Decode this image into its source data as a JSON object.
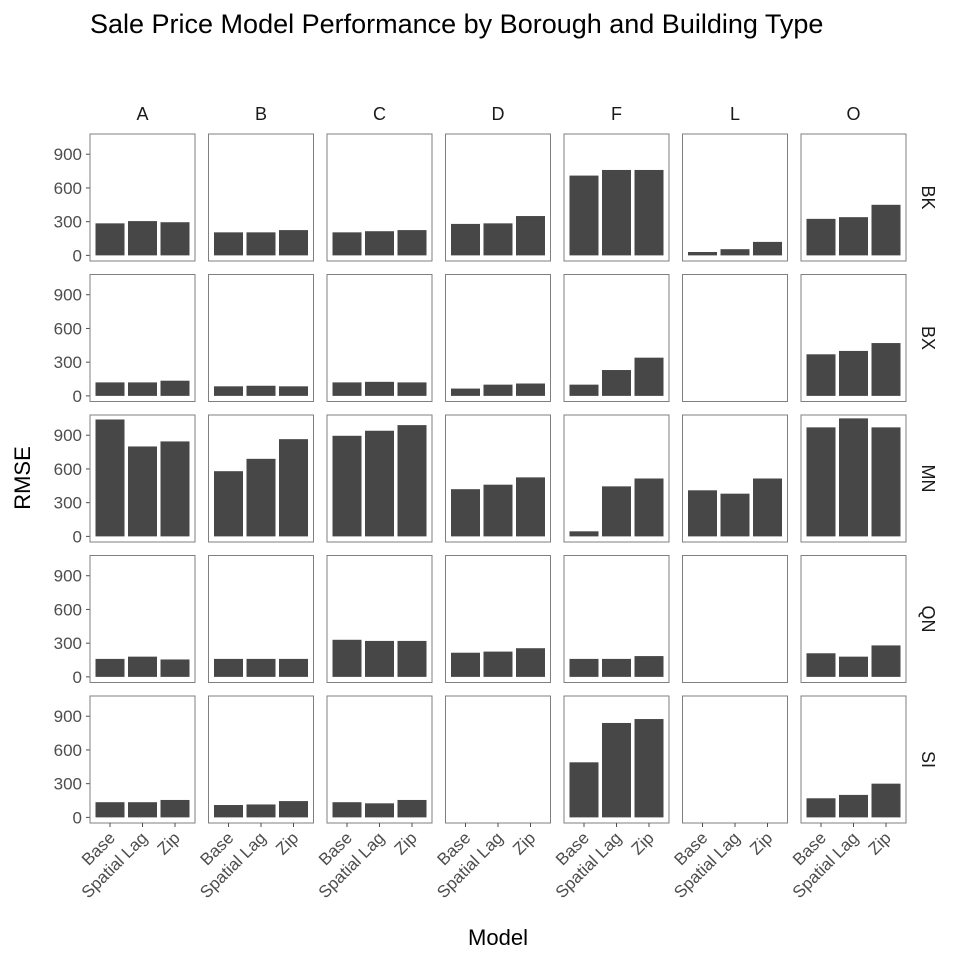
{
  "chart_data": {
    "type": "bar",
    "title": "Sale Price Model Performance by Borough and Building Type",
    "xlabel": "Model",
    "ylabel": "RMSE",
    "categories": [
      "Base",
      "Spatial Lag",
      "Zip"
    ],
    "columns": [
      "A",
      "B",
      "C",
      "D",
      "F",
      "L",
      "O"
    ],
    "rows": [
      "BK",
      "BX",
      "MN",
      "QN",
      "SI"
    ],
    "yticks": [
      0,
      300,
      600,
      900
    ],
    "ylim": [
      -50,
      1080
    ],
    "grid": false,
    "bar_color": "#474747",
    "panels": [
      {
        "row": "BK",
        "col": "A",
        "values": [
          285,
          305,
          295
        ]
      },
      {
        "row": "BK",
        "col": "B",
        "values": [
          205,
          205,
          225
        ]
      },
      {
        "row": "BK",
        "col": "C",
        "values": [
          205,
          215,
          225
        ]
      },
      {
        "row": "BK",
        "col": "D",
        "values": [
          280,
          285,
          350
        ]
      },
      {
        "row": "BK",
        "col": "F",
        "values": [
          710,
          760,
          760
        ]
      },
      {
        "row": "BK",
        "col": "L",
        "values": [
          30,
          55,
          120
        ]
      },
      {
        "row": "BK",
        "col": "O",
        "values": [
          325,
          340,
          450
        ]
      },
      {
        "row": "BX",
        "col": "A",
        "values": [
          120,
          120,
          135
        ]
      },
      {
        "row": "BX",
        "col": "B",
        "values": [
          85,
          90,
          85
        ]
      },
      {
        "row": "BX",
        "col": "C",
        "values": [
          120,
          125,
          120
        ]
      },
      {
        "row": "BX",
        "col": "D",
        "values": [
          65,
          100,
          110
        ]
      },
      {
        "row": "BX",
        "col": "F",
        "values": [
          100,
          230,
          340
        ]
      },
      {
        "row": "BX",
        "col": "L",
        "values": [
          null,
          null,
          null
        ]
      },
      {
        "row": "BX",
        "col": "O",
        "values": [
          370,
          400,
          470
        ]
      },
      {
        "row": "MN",
        "col": "A",
        "values": [
          1040,
          800,
          845
        ]
      },
      {
        "row": "MN",
        "col": "B",
        "values": [
          580,
          690,
          865
        ]
      },
      {
        "row": "MN",
        "col": "C",
        "values": [
          895,
          940,
          990
        ]
      },
      {
        "row": "MN",
        "col": "D",
        "values": [
          420,
          460,
          525
        ]
      },
      {
        "row": "MN",
        "col": "F",
        "values": [
          45,
          445,
          515
        ]
      },
      {
        "row": "MN",
        "col": "L",
        "values": [
          410,
          380,
          515
        ]
      },
      {
        "row": "MN",
        "col": "O",
        "values": [
          970,
          1050,
          970
        ]
      },
      {
        "row": "QN",
        "col": "A",
        "values": [
          160,
          180,
          155
        ]
      },
      {
        "row": "QN",
        "col": "B",
        "values": [
          160,
          160,
          160
        ]
      },
      {
        "row": "QN",
        "col": "C",
        "values": [
          330,
          320,
          320
        ]
      },
      {
        "row": "QN",
        "col": "D",
        "values": [
          215,
          225,
          255
        ]
      },
      {
        "row": "QN",
        "col": "F",
        "values": [
          160,
          160,
          185
        ]
      },
      {
        "row": "QN",
        "col": "L",
        "values": [
          null,
          null,
          null
        ]
      },
      {
        "row": "QN",
        "col": "O",
        "values": [
          210,
          180,
          280
        ]
      },
      {
        "row": "SI",
        "col": "A",
        "values": [
          135,
          135,
          155
        ]
      },
      {
        "row": "SI",
        "col": "B",
        "values": [
          110,
          115,
          145
        ]
      },
      {
        "row": "SI",
        "col": "C",
        "values": [
          135,
          125,
          155
        ]
      },
      {
        "row": "SI",
        "col": "D",
        "values": [
          null,
          null,
          null
        ]
      },
      {
        "row": "SI",
        "col": "F",
        "values": [
          490,
          840,
          875
        ]
      },
      {
        "row": "SI",
        "col": "L",
        "values": [
          null,
          null,
          null
        ]
      },
      {
        "row": "SI",
        "col": "O",
        "values": [
          170,
          200,
          300
        ]
      }
    ]
  }
}
